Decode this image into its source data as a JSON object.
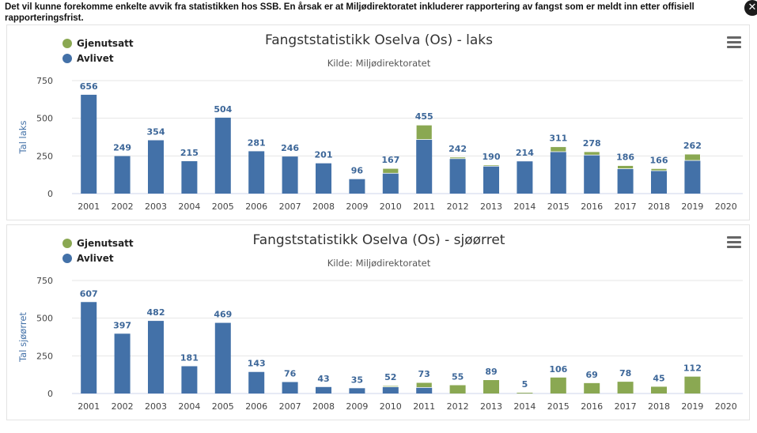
{
  "notice": "Det vil kunne forekomme enkelte avvik fra statistikken hos SSB. En årsak er at Miljødirektoratet inkluderer rapportering av fangst som er meldt inn etter offisiell rapporteringsfrist.",
  "close_label": "✕",
  "chart_data": [
    {
      "type": "bar",
      "stacked": true,
      "title": "Fangststatistikk Oselva (Os) - laks",
      "subtitle": "Kilde: Miljødirektoratet",
      "ylabel": "Tal laks",
      "ylim": [
        0,
        750
      ],
      "yticks": [
        0,
        250,
        500,
        750
      ],
      "grid": true,
      "legend_position": "top-left",
      "categories": [
        "2001",
        "2002",
        "2003",
        "2004",
        "2005",
        "2006",
        "2007",
        "2008",
        "2009",
        "2010",
        "2011",
        "2012",
        "2013",
        "2014",
        "2015",
        "2016",
        "2017",
        "2018",
        "2019",
        "2020"
      ],
      "totals": [
        656,
        249,
        354,
        215,
        504,
        281,
        246,
        201,
        96,
        167,
        455,
        242,
        190,
        214,
        311,
        278,
        186,
        166,
        262,
        null
      ],
      "series": [
        {
          "name": "Gjenutsatt",
          "color": "#8aa852",
          "values": [
            0,
            0,
            0,
            0,
            0,
            0,
            0,
            0,
            0,
            32,
            96,
            10,
            8,
            0,
            33,
            22,
            21,
            14,
            42,
            0
          ]
        },
        {
          "name": "Avlivet",
          "color": "#4371a8",
          "values": [
            656,
            249,
            354,
            215,
            504,
            281,
            246,
            201,
            96,
            135,
            359,
            232,
            182,
            214,
            278,
            256,
            165,
            152,
            220,
            0
          ]
        }
      ]
    },
    {
      "type": "bar",
      "stacked": true,
      "title": "Fangststatistikk Oselva (Os) - sjøørret",
      "subtitle": "Kilde: Miljødirektoratet",
      "ylabel": "Tal sjøørret",
      "ylim": [
        0,
        750
      ],
      "yticks": [
        0,
        250,
        500,
        750
      ],
      "grid": true,
      "legend_position": "top-left",
      "categories": [
        "2001",
        "2002",
        "2003",
        "2004",
        "2005",
        "2006",
        "2007",
        "2008",
        "2009",
        "2010",
        "2011",
        "2012",
        "2013",
        "2014",
        "2015",
        "2016",
        "2017",
        "2018",
        "2019",
        "2020"
      ],
      "totals": [
        607,
        397,
        482,
        181,
        469,
        143,
        76,
        43,
        35,
        52,
        73,
        55,
        89,
        5,
        106,
        69,
        78,
        45,
        112,
        null
      ],
      "series": [
        {
          "name": "Gjenutsatt",
          "color": "#8aa852",
          "values": [
            0,
            0,
            0,
            0,
            0,
            0,
            0,
            0,
            0,
            8,
            33,
            55,
            89,
            5,
            106,
            69,
            78,
            45,
            112,
            0
          ]
        },
        {
          "name": "Avlivet",
          "color": "#4371a8",
          "values": [
            607,
            397,
            482,
            181,
            469,
            143,
            76,
            43,
            35,
            44,
            40,
            0,
            0,
            0,
            0,
            0,
            0,
            0,
            0,
            0
          ]
        }
      ]
    }
  ]
}
